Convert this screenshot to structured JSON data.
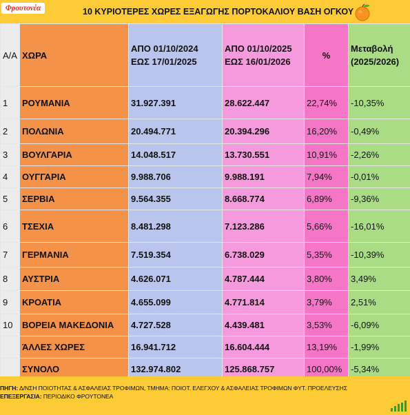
{
  "header": {
    "logo_text": "Φρουτονέα",
    "title": "10 ΚΥΡΙΟΤΕΡΕΣ ΧΩΡΕΣ ΕΞΑΓΩΓΗΣ ΠΟΡΤΟΚΑΛΙΟΥ ΒΑΣΗ ΟΓΚΟΥ",
    "icon": "orange-fruit-icon"
  },
  "columns": {
    "aa": "Α/Α",
    "country": "ΧΩΡΑ",
    "period1_line1": "ΑΠΟ 01/10/2024",
    "period1_line2": "ΕΩΣ 17/01/2025",
    "period2_line1": "ΑΠΟ 01/10/2025",
    "period2_line2": "ΕΩΣ 16/01/2026",
    "pct": "%",
    "change_line1": "Μεταβολή",
    "change_line2": "(2025/2026)"
  },
  "rows": [
    {
      "aa": "1",
      "country": "ΡΟΥΜΑΝΙΑ",
      "v2025": "31.927.391",
      "v2026": "28.622.447",
      "pct": "22,74%",
      "change": "-10,35%"
    },
    {
      "aa": "2",
      "country": "ΠΟΛΩΝΙΑ",
      "v2025": "20.494.771",
      "v2026": "20.394.296",
      "pct": "16,20%",
      "change": "-0,49%"
    },
    {
      "aa": "3",
      "country": "ΒΟΥΛΓΑΡΙΑ",
      "v2025": "14.048.517",
      "v2026": "13.730.551",
      "pct": "10,91%",
      "change": "-2,26%"
    },
    {
      "aa": "4",
      "country": "ΟΥΓΓΑΡΙΑ",
      "v2025": "9.988.706",
      "v2026": "9.988.191",
      "pct": "7,94%",
      "change": "-0,01%"
    },
    {
      "aa": "5",
      "country": "ΣΕΡΒΙΑ",
      "v2025": "9.564.355",
      "v2026": "8.668.774",
      "pct": "6,89%",
      "change": "-9,36%"
    },
    {
      "aa": "6",
      "country": "ΤΣΕΧΙΑ",
      "v2025": "8.481.298",
      "v2026": "7.123.286",
      "pct": "5,66%",
      "change": "-16,01%"
    },
    {
      "aa": "7",
      "country": "ΓΕΡΜΑΝΙΑ",
      "v2025": "7.519.354",
      "v2026": "6.738.029",
      "pct": "5,35%",
      "change": "-10,39%"
    },
    {
      "aa": "8",
      "country": "ΑΥΣΤΡΙΑ",
      "v2025": "4.626.071",
      "v2026": "4.787.444",
      "pct": "3,80%",
      "change": "3,49%"
    },
    {
      "aa": "9",
      "country": "ΚΡΟΑΤΙΑ",
      "v2025": "4.655.099",
      "v2026": "4.771.814",
      "pct": "3,79%",
      "change": "2,51%"
    },
    {
      "aa": "10",
      "country": "ΒΟΡΕΙΑ ΜΑΚΕΔΟΝΙΑ",
      "v2025": "4.727.528",
      "v2026": "4.439.481",
      "pct": "3,53%",
      "change": "-6,09%"
    },
    {
      "aa": "",
      "country": "ΆΛΛΕΣ ΧΩΡΕΣ",
      "v2025": "16.941.712",
      "v2026": "16.604.444",
      "pct": "13,19%",
      "change": "-1,99%"
    },
    {
      "aa": "",
      "country": "ΣΥΝΟΛΟ",
      "v2025": "132.974.802",
      "v2026": "125.868.757",
      "pct": "100,00%",
      "change": "-5,34%"
    }
  ],
  "footer": {
    "source_label": "ΠΗΓΗ:",
    "source_text": " Δ/ΝΣΗ ΠΟΙΟΤΗΤΑΣ & ΑΣΦΑΛΕΙΑΣ ΤΡΟΦΙΜΩΝ, ΤΜΗΜΑ: ΠΟΙΟΤ. ΕΛΕΓΧΟΥ & ΑΣΦΑΛΕΙΑΣ ΤΡΟΦΙΜΩΝ ΦΥΤ. ΠΡΟΕΛΕΥΣΗΣ",
    "processing_label": "ΕΠΕΞΕΡΓΑΣΙΑ:",
    "processing_text": " ΠΕΡΙΟΔΙΚΟ ΦΡΟΥΤΟΝΕΑ",
    "corner_icon": "signal-bars-icon"
  },
  "colors": {
    "background": "#fdcb35",
    "aa_column": "#ececec",
    "country_column": "#f5924a",
    "period1_column": "#b9c5ec",
    "period2_column": "#f59add",
    "pct_column": "#f576c7",
    "change_column": "#a9dc85"
  }
}
